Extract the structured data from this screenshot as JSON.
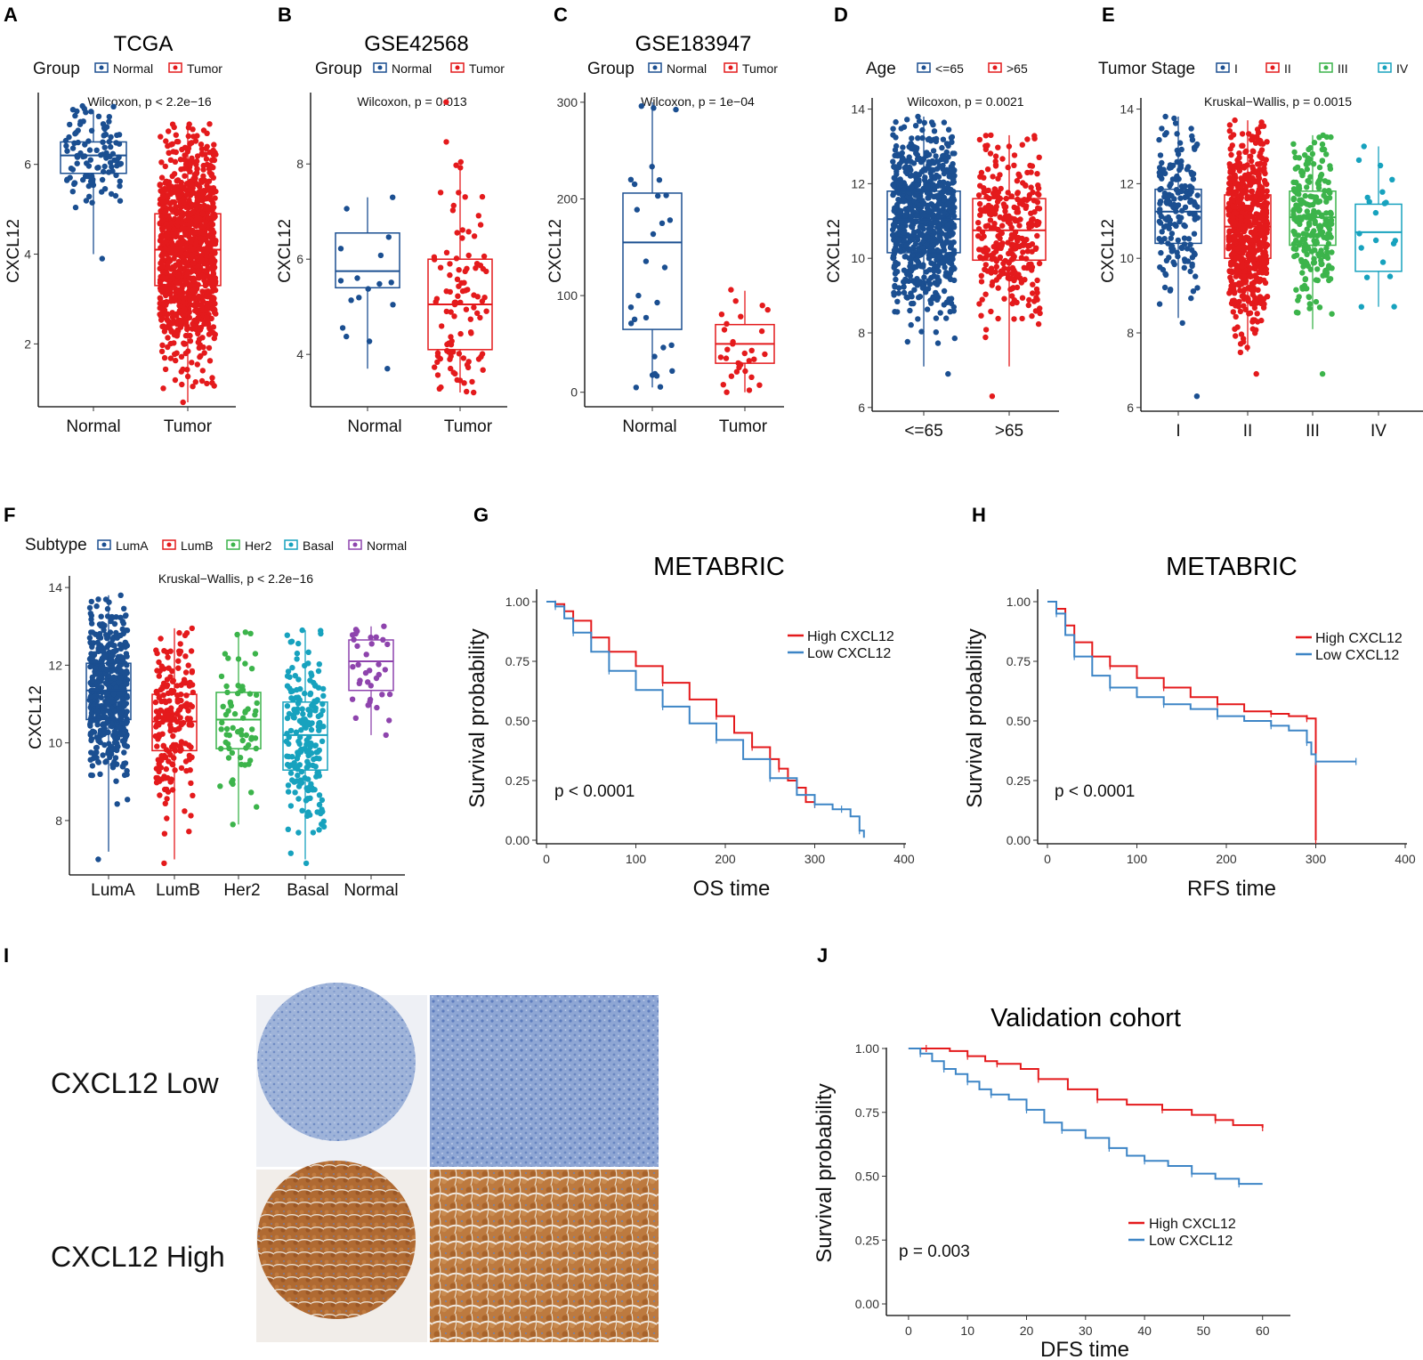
{
  "colors": {
    "normal": "#1b4f91",
    "tumor": "#e41a1c",
    "stageI": "#1b4f91",
    "stageII": "#e41a1c",
    "stageIII": "#3cb44b",
    "stageIV": "#17a2be",
    "basal": "#17a2be",
    "subNormal": "#8e44ad",
    "high": "#e41a1c",
    "low": "#3d85c6"
  },
  "panels": {
    "A": {
      "label": "A",
      "title": "TCGA",
      "legend_title": "Group",
      "legend": [
        "Normal",
        "Tumor"
      ],
      "stat": "Wilcoxon, p < 2.2e−16",
      "ylabel": "CXCL12"
    },
    "B": {
      "label": "B",
      "title": "GSE42568",
      "legend_title": "Group",
      "legend": [
        "Normal",
        "Tumor"
      ],
      "stat": "Wilcoxon, p = 0.013",
      "ylabel": "CXCL12"
    },
    "C": {
      "label": "C",
      "title": "GSE183947",
      "legend_title": "Group",
      "legend": [
        "Normal",
        "Tumor"
      ],
      "stat": "Wilcoxon, p = 1e−04",
      "ylabel": "CXCL12"
    },
    "D": {
      "label": "D",
      "legend_title": "Age",
      "legend": [
        "<=65",
        ">65"
      ],
      "stat": "Wilcoxon, p = 0.0021",
      "ylabel": "CXCL12"
    },
    "E": {
      "label": "E",
      "legend_title": "Tumor Stage",
      "legend": [
        "I",
        "II",
        "III",
        "IV"
      ],
      "stat": "Kruskal−Wallis, p = 0.0015",
      "ylabel": "CXCL12"
    },
    "F": {
      "label": "F",
      "legend_title": "Subtype",
      "legend": [
        "LumA",
        "LumB",
        "Her2",
        "Basal",
        "Normal"
      ],
      "stat": "Kruskal−Wallis, p < 2.2e−16",
      "ylabel": "CXCL12"
    },
    "G": {
      "label": "G",
      "title": "METABRIC",
      "legend": [
        "High CXCL12",
        "Low CXCL12"
      ],
      "pval": "p < 0.0001",
      "xlabel": "OS time",
      "ylabel": "Survival probability"
    },
    "H": {
      "label": "H",
      "title": "METABRIC",
      "legend": [
        "High CXCL12",
        "Low CXCL12"
      ],
      "pval": "p < 0.0001",
      "xlabel": "RFS time",
      "ylabel": "Survival probability"
    },
    "I": {
      "label": "I",
      "low_label": "CXCL12 Low",
      "high_label": "CXCL12 High"
    },
    "J": {
      "label": "J",
      "title": "Validation cohort",
      "legend": [
        "High CXCL12",
        "Low CXCL12"
      ],
      "pval": "p = 0.003",
      "xlabel": "DFS time",
      "ylabel": "Survival probability"
    }
  },
  "chart_data": [
    {
      "id": "A",
      "type": "box",
      "categories": [
        "Normal",
        "Tumor"
      ],
      "ylim": [
        0.6,
        7.6
      ],
      "yticks": [
        2,
        4,
        6
      ],
      "boxes": [
        {
          "q1": 5.8,
          "med": 6.2,
          "q3": 6.5,
          "lo": 4.0,
          "hi": 7.2,
          "pmin": 3.9,
          "pmax": 7.3,
          "n": 110
        },
        {
          "q1": 3.3,
          "med": 4.1,
          "q3": 4.9,
          "lo": 0.7,
          "hi": 6.8,
          "pmin": 0.7,
          "pmax": 6.9,
          "n": 1100
        }
      ]
    },
    {
      "id": "B",
      "type": "box",
      "categories": [
        "Normal",
        "Tumor"
      ],
      "ylim": [
        2.9,
        9.5
      ],
      "yticks": [
        4,
        6,
        8
      ],
      "boxes": [
        {
          "q1": 5.4,
          "med": 5.75,
          "q3": 6.55,
          "lo": 3.7,
          "hi": 7.3,
          "pmin": 3.7,
          "pmax": 7.3,
          "n": 17
        },
        {
          "q1": 4.1,
          "med": 5.05,
          "q3": 6.0,
          "lo": 3.2,
          "hi": 7.95,
          "pmin": 3.2,
          "pmax": 9.3,
          "n": 104
        }
      ]
    },
    {
      "id": "C",
      "type": "box",
      "categories": [
        "Normal",
        "Tumor"
      ],
      "ylim": [
        -15,
        310
      ],
      "yticks": [
        0,
        100,
        200,
        300
      ],
      "boxes": [
        {
          "q1": 65,
          "med": 155,
          "q3": 206,
          "lo": 5,
          "hi": 300,
          "pmin": 5,
          "pmax": 296,
          "n": 30
        },
        {
          "q1": 30,
          "med": 50,
          "q3": 70,
          "lo": 0,
          "hi": 105,
          "pmin": 0,
          "pmax": 106,
          "n": 30
        }
      ]
    },
    {
      "id": "D",
      "type": "box",
      "categories": [
        "<=65",
        ">65"
      ],
      "ylim": [
        5.9,
        14.3
      ],
      "yticks": [
        6,
        8,
        10,
        12,
        14
      ],
      "boxes": [
        {
          "q1": 10.15,
          "med": 11.05,
          "q3": 11.8,
          "lo": 7.1,
          "hi": 13.8,
          "pmin": 6.9,
          "pmax": 13.8,
          "n": 800
        },
        {
          "q1": 9.95,
          "med": 10.75,
          "q3": 11.6,
          "lo": 7.1,
          "hi": 13.3,
          "pmin": 6.3,
          "pmax": 13.3,
          "n": 300
        }
      ]
    },
    {
      "id": "E",
      "type": "box",
      "categories": [
        "I",
        "II",
        "III",
        "IV"
      ],
      "ylim": [
        5.9,
        14.3
      ],
      "yticks": [
        6,
        8,
        10,
        12,
        14
      ],
      "boxes": [
        {
          "q1": 10.4,
          "med": 11.25,
          "q3": 11.85,
          "lo": 8.4,
          "hi": 13.8,
          "pmin": 6.3,
          "pmax": 13.8,
          "n": 180
        },
        {
          "q1": 10.0,
          "med": 10.85,
          "q3": 11.7,
          "lo": 7.5,
          "hi": 13.7,
          "pmin": 6.9,
          "pmax": 13.7,
          "n": 620
        },
        {
          "q1": 10.35,
          "med": 11.1,
          "q3": 11.8,
          "lo": 8.1,
          "hi": 13.3,
          "pmin": 6.9,
          "pmax": 13.3,
          "n": 250
        },
        {
          "q1": 9.65,
          "med": 10.7,
          "q3": 11.45,
          "lo": 8.7,
          "hi": 13.0,
          "pmin": 8.7,
          "pmax": 13.0,
          "n": 20
        }
      ]
    },
    {
      "id": "F",
      "type": "box",
      "categories": [
        "LumA",
        "LumB",
        "Her2",
        "Basal",
        "Normal"
      ],
      "ylim": [
        6.6,
        14.3
      ],
      "yticks": [
        8,
        10,
        12,
        14
      ],
      "boxes": [
        {
          "q1": 10.6,
          "med": 11.35,
          "q3": 12.05,
          "lo": 7.2,
          "hi": 13.8,
          "pmin": 7.0,
          "pmax": 13.8,
          "n": 500
        },
        {
          "q1": 9.8,
          "med": 10.55,
          "q3": 11.25,
          "lo": 7.0,
          "hi": 12.95,
          "pmin": 6.9,
          "pmax": 12.95,
          "n": 200
        },
        {
          "q1": 9.85,
          "med": 10.6,
          "q3": 11.3,
          "lo": 7.9,
          "hi": 12.85,
          "pmin": 7.9,
          "pmax": 12.85,
          "n": 70
        },
        {
          "q1": 9.3,
          "med": 10.2,
          "q3": 11.05,
          "lo": 7.0,
          "hi": 12.9,
          "pmin": 6.9,
          "pmax": 12.9,
          "n": 200
        },
        {
          "q1": 11.35,
          "med": 12.1,
          "q3": 12.65,
          "lo": 10.2,
          "hi": 13.0,
          "pmin": 10.2,
          "pmax": 13.0,
          "n": 35
        }
      ]
    },
    {
      "id": "G",
      "type": "line",
      "xlim": [
        0,
        400
      ],
      "ylim": [
        0,
        1
      ],
      "xticks": [
        0,
        100,
        200,
        300,
        400
      ],
      "yticks": [
        0,
        0.25,
        0.5,
        0.75,
        1
      ],
      "series": [
        {
          "name": "High CXCL12",
          "x": [
            0,
            10,
            20,
            30,
            50,
            70,
            100,
            130,
            160,
            190,
            210,
            230,
            250,
            260,
            270,
            280,
            290,
            300
          ],
          "y": [
            1,
            0.99,
            0.96,
            0.92,
            0.85,
            0.79,
            0.73,
            0.66,
            0.59,
            0.52,
            0.45,
            0.39,
            0.34,
            0.3,
            0.25,
            0.22,
            0.16,
            0.15
          ]
        },
        {
          "name": "Low CXCL12",
          "x": [
            0,
            10,
            20,
            30,
            50,
            70,
            100,
            130,
            160,
            190,
            220,
            250,
            280,
            300,
            320,
            330,
            340,
            350,
            355
          ],
          "y": [
            1,
            0.98,
            0.93,
            0.87,
            0.79,
            0.71,
            0.63,
            0.56,
            0.49,
            0.42,
            0.34,
            0.26,
            0.19,
            0.15,
            0.13,
            0.13,
            0.1,
            0.04,
            0.01
          ]
        }
      ]
    },
    {
      "id": "H",
      "type": "line",
      "xlim": [
        0,
        400
      ],
      "ylim": [
        0,
        1
      ],
      "xticks": [
        0,
        100,
        200,
        300,
        400
      ],
      "yticks": [
        0,
        0.25,
        0.5,
        0.75,
        1
      ],
      "series": [
        {
          "name": "High CXCL12",
          "x": [
            0,
            10,
            20,
            30,
            50,
            70,
            100,
            130,
            160,
            190,
            220,
            250,
            270,
            290,
            298,
            300
          ],
          "y": [
            1,
            0.97,
            0.9,
            0.83,
            0.77,
            0.73,
            0.68,
            0.64,
            0.6,
            0.57,
            0.54,
            0.53,
            0.52,
            0.51,
            0.51,
            0.0
          ]
        },
        {
          "name": "Low CXCL12",
          "x": [
            0,
            10,
            20,
            30,
            50,
            70,
            100,
            130,
            160,
            190,
            220,
            250,
            270,
            290,
            295,
            300,
            320,
            345
          ],
          "y": [
            1,
            0.95,
            0.86,
            0.77,
            0.69,
            0.64,
            0.6,
            0.57,
            0.55,
            0.52,
            0.5,
            0.48,
            0.46,
            0.41,
            0.36,
            0.33,
            0.33,
            0.33
          ]
        }
      ]
    },
    {
      "id": "J",
      "type": "line",
      "xlim": [
        -3,
        62
      ],
      "ylim": [
        0,
        1
      ],
      "xticks": [
        0,
        10,
        20,
        30,
        40,
        50,
        60
      ],
      "yticks": [
        0,
        0.25,
        0.5,
        0.75,
        1
      ],
      "series": [
        {
          "name": "High CXCL12",
          "x": [
            0,
            3,
            7,
            10,
            13,
            15,
            19,
            22,
            27,
            32,
            37,
            43,
            48,
            52,
            55,
            60
          ],
          "y": [
            1,
            1,
            0.99,
            0.97,
            0.95,
            0.94,
            0.92,
            0.88,
            0.84,
            0.8,
            0.78,
            0.76,
            0.74,
            0.72,
            0.7,
            0.69
          ]
        },
        {
          "name": "Low CXCL12",
          "x": [
            0,
            2,
            4,
            6,
            8,
            10,
            12,
            14,
            17,
            20,
            23,
            26,
            30,
            34,
            37,
            40,
            44,
            48,
            52,
            56,
            60
          ],
          "y": [
            1,
            0.98,
            0.95,
            0.92,
            0.9,
            0.87,
            0.84,
            0.82,
            0.8,
            0.76,
            0.71,
            0.68,
            0.65,
            0.61,
            0.58,
            0.56,
            0.54,
            0.51,
            0.49,
            0.47,
            0.47
          ]
        }
      ]
    }
  ]
}
